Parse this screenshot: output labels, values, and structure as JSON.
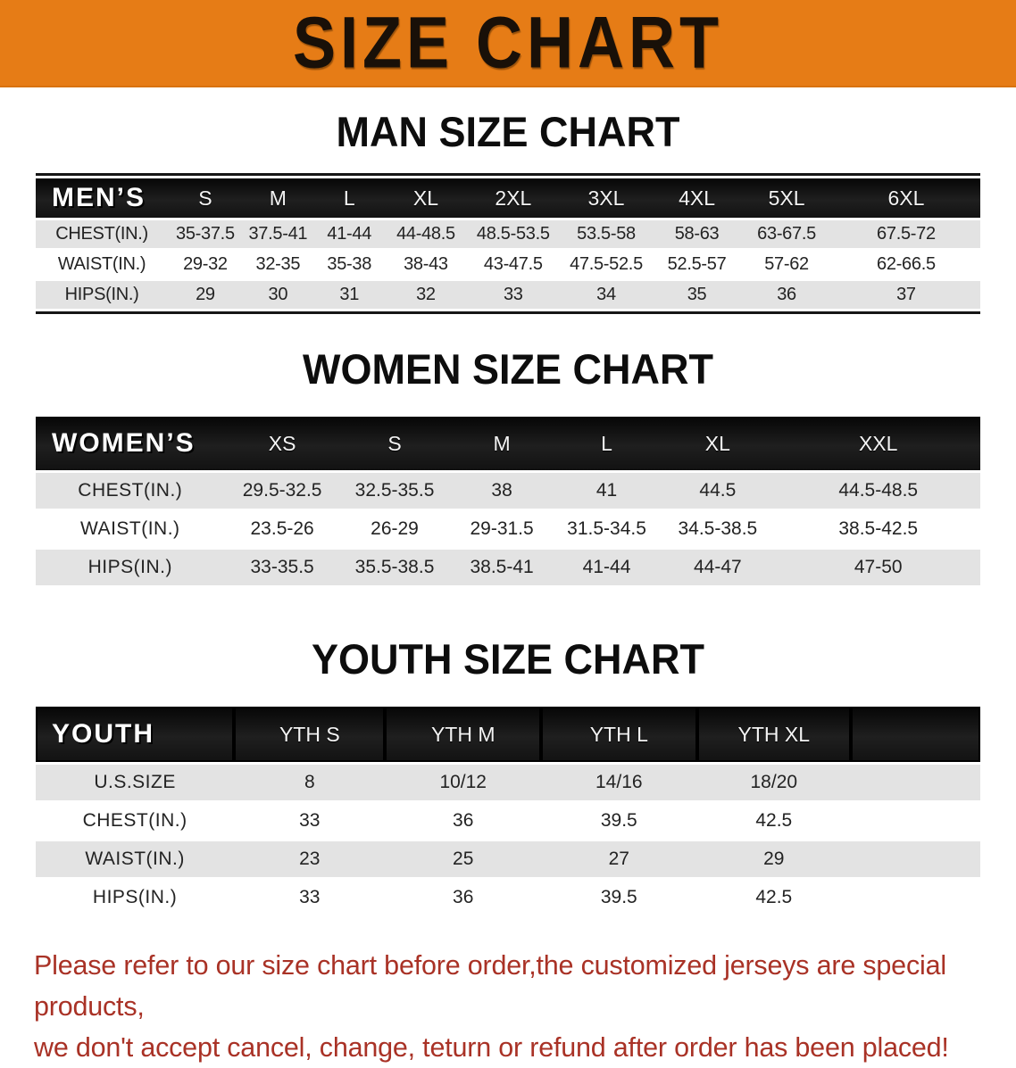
{
  "banner": {
    "title": "SIZE CHART"
  },
  "colors": {
    "banner_bg": "#e67c16",
    "header_bar": "#141414",
    "row_shade": "#e3e3e3",
    "footer_red": "#a93226"
  },
  "sections": [
    {
      "heading": "MAN SIZE CHART",
      "table": {
        "label": "MEN’S",
        "sizes": [
          "S",
          "M",
          "L",
          "XL",
          "2XL",
          "3XL",
          "4XL",
          "5XL",
          "6XL"
        ],
        "rows": [
          {
            "label": "CHEST(IN.)",
            "values": [
              "35-37.5",
              "37.5-41",
              "41-44",
              "44-48.5",
              "48.5-53.5",
              "53.5-58",
              "58-63",
              "63-67.5",
              "67.5-72"
            ]
          },
          {
            "label": "WAIST(IN.)",
            "values": [
              "29-32",
              "32-35",
              "35-38",
              "38-43",
              "43-47.5",
              "47.5-52.5",
              "52.5-57",
              "57-62",
              "62-66.5"
            ]
          },
          {
            "label": "HIPS(IN.)",
            "values": [
              "29",
              "30",
              "31",
              "32",
              "33",
              "34",
              "35",
              "36",
              "37"
            ]
          }
        ]
      }
    },
    {
      "heading": "WOMEN SIZE CHART",
      "table": {
        "label": "WOMEN’S",
        "sizes": [
          "XS",
          "S",
          "M",
          "L",
          "XL",
          "XXL"
        ],
        "rows": [
          {
            "label": "CHEST(IN.)",
            "values": [
              "29.5-32.5",
              "32.5-35.5",
              "38",
              "41",
              "44.5",
              "44.5-48.5"
            ]
          },
          {
            "label": "WAIST(IN.)",
            "values": [
              "23.5-26",
              "26-29",
              "29-31.5",
              "31.5-34.5",
              "34.5-38.5",
              "38.5-42.5"
            ]
          },
          {
            "label": "HIPS(IN.)",
            "values": [
              "33-35.5",
              "35.5-38.5",
              "38.5-41",
              "41-44",
              "44-47",
              "47-50"
            ]
          }
        ]
      }
    },
    {
      "heading": "YOUTH SIZE CHART",
      "table": {
        "label": "YOUTH",
        "sizes": [
          "YTH S",
          "YTH M",
          "YTH L",
          "YTH XL"
        ],
        "rows": [
          {
            "label": "U.S.SIZE",
            "values": [
              "8",
              "10/12",
              "14/16",
              "18/20"
            ]
          },
          {
            "label": "CHEST(IN.)",
            "values": [
              "33",
              "36",
              "39.5",
              "42.5"
            ]
          },
          {
            "label": "WAIST(IN.)",
            "values": [
              "23",
              "25",
              "27",
              "29"
            ]
          },
          {
            "label": "HIPS(IN.)",
            "values": [
              "33",
              "36",
              "39.5",
              "42.5"
            ]
          }
        ]
      }
    }
  ],
  "footer": {
    "lines": [
      "Please refer to our size chart before order,the customized jerseys are special products,",
      "we don't accept cancel, change, teturn or refund after order has been placed!"
    ]
  }
}
